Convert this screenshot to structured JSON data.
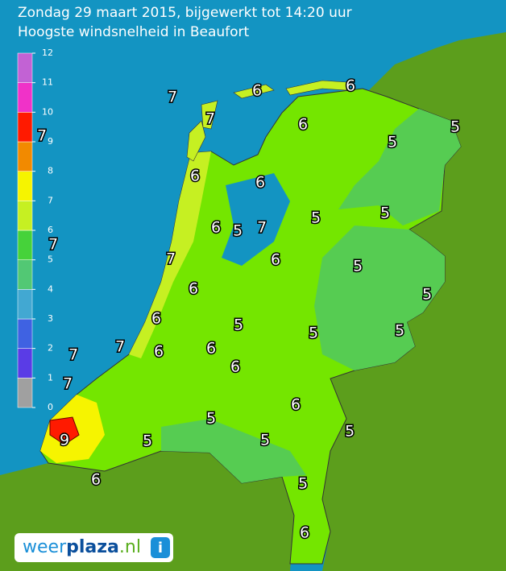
{
  "header": {
    "title": "Zondag 29 maart 2015, bijgewerkt tot 14:20 uur",
    "subtitle": "Hoogste windsnelheid in Beaufort"
  },
  "legend": {
    "ticks": [
      0,
      1,
      2,
      3,
      4,
      5,
      6,
      7,
      8,
      9,
      10,
      11,
      12
    ],
    "colors": [
      "#a0a0a0",
      "#5a3ce6",
      "#3f62e2",
      "#42a8d2",
      "#52c874",
      "#46d23a",
      "#c6f022",
      "#f6f400",
      "#f28a00",
      "#ff1a00",
      "#f032c8",
      "#c262d4"
    ]
  },
  "map": {
    "labels": [
      "7",
      "6",
      "6",
      "7",
      "6",
      "5",
      "5",
      "7",
      "7",
      "6",
      "6",
      "5",
      "5",
      "6",
      "5",
      "7",
      "7",
      "6",
      "5",
      "6",
      "5",
      "6",
      "5",
      "5",
      "5",
      "7",
      "6",
      "6",
      "7",
      "6",
      "7",
      "6",
      "5",
      "5",
      "9",
      "5",
      "5",
      "6",
      "5",
      "6"
    ]
  },
  "logo": {
    "part1": "weer",
    "part2": "plaza",
    "part3": ".nl",
    "icon": "i"
  }
}
